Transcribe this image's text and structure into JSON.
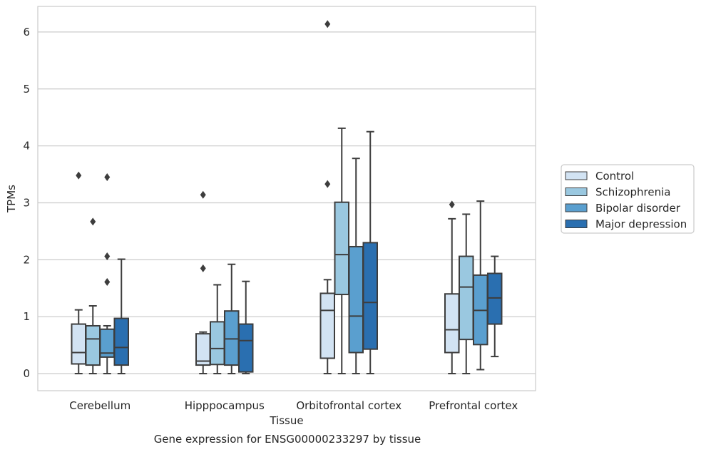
{
  "chart_data": {
    "type": "box",
    "title": "",
    "caption": "Gene expression for ENSG00000233297 by tissue",
    "xlabel": "Tissue",
    "ylabel": "TPMs",
    "ylim": [
      -0.3,
      6.45
    ],
    "yticks": [
      0,
      1,
      2,
      3,
      4,
      5,
      6
    ],
    "grid": "horizontal",
    "legend_position": "right",
    "categories": [
      "Cerebellum",
      "Hipppocampus",
      "Orbitofrontal cortex",
      "Prefrontal cortex"
    ],
    "series": [
      {
        "name": "Control",
        "color": "#d2e3f3",
        "boxes": [
          {
            "whislo": 0.0,
            "q1": 0.17,
            "med": 0.37,
            "q3": 0.87,
            "whishi": 1.12,
            "fliers": [
              3.48
            ]
          },
          {
            "whislo": 0.0,
            "q1": 0.15,
            "med": 0.22,
            "q3": 0.7,
            "whishi": 0.73,
            "fliers": [
              1.85,
              3.14
            ]
          },
          {
            "whislo": 0.0,
            "q1": 0.27,
            "med": 1.11,
            "q3": 1.41,
            "whishi": 1.65,
            "fliers": [
              3.33,
              6.14
            ]
          },
          {
            "whislo": 0.0,
            "q1": 0.37,
            "med": 0.77,
            "q3": 1.4,
            "whishi": 2.72,
            "fliers": [
              2.97
            ]
          }
        ]
      },
      {
        "name": "Schizophrenia",
        "color": "#9ac8e0",
        "boxes": [
          {
            "whislo": 0.0,
            "q1": 0.15,
            "med": 0.61,
            "q3": 0.84,
            "whishi": 1.19,
            "fliers": [
              2.67
            ]
          },
          {
            "whislo": 0.0,
            "q1": 0.16,
            "med": 0.44,
            "q3": 0.91,
            "whishi": 1.56,
            "fliers": []
          },
          {
            "whislo": 0.0,
            "q1": 1.39,
            "med": 2.09,
            "q3": 3.01,
            "whishi": 4.31,
            "fliers": []
          },
          {
            "whislo": 0.0,
            "q1": 0.6,
            "med": 1.52,
            "q3": 2.06,
            "whishi": 2.8,
            "fliers": []
          }
        ]
      },
      {
        "name": "Bipolar disorder",
        "color": "#5a9fcf",
        "boxes": [
          {
            "whislo": 0.0,
            "q1": 0.29,
            "med": 0.36,
            "q3": 0.78,
            "whishi": 0.84,
            "fliers": [
              1.61,
              2.06,
              3.45
            ]
          },
          {
            "whislo": 0.0,
            "q1": 0.15,
            "med": 0.61,
            "q3": 1.1,
            "whishi": 1.92,
            "fliers": []
          },
          {
            "whislo": 0.0,
            "q1": 0.37,
            "med": 1.01,
            "q3": 2.23,
            "whishi": 3.78,
            "fliers": []
          },
          {
            "whislo": 0.07,
            "q1": 0.51,
            "med": 1.11,
            "q3": 1.73,
            "whishi": 3.03,
            "fliers": []
          }
        ]
      },
      {
        "name": "Major depression",
        "color": "#2a6fb0",
        "boxes": [
          {
            "whislo": 0.0,
            "q1": 0.15,
            "med": 0.46,
            "q3": 0.97,
            "whishi": 2.01,
            "fliers": []
          },
          {
            "whislo": 0.0,
            "q1": 0.03,
            "med": 0.58,
            "q3": 0.87,
            "whishi": 1.62,
            "fliers": []
          },
          {
            "whislo": 0.0,
            "q1": 0.43,
            "med": 1.25,
            "q3": 2.3,
            "whishi": 4.25,
            "fliers": []
          },
          {
            "whislo": 0.3,
            "q1": 0.87,
            "med": 1.33,
            "q3": 1.76,
            "whishi": 2.06,
            "fliers": []
          }
        ]
      }
    ]
  }
}
